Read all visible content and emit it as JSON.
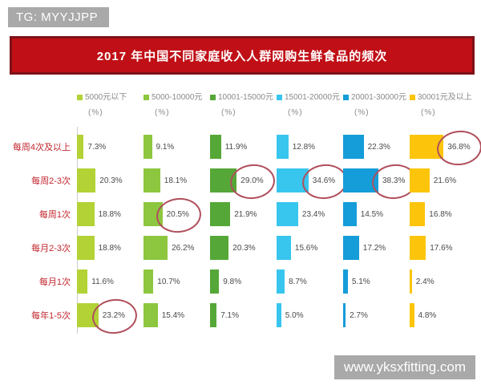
{
  "overlays": {
    "tg_label": "TG: MYYJJPP",
    "watermark": "www.yksxfitting.com"
  },
  "title": "2017 年中国不同家庭收入人群网购生鲜食品的频次",
  "chart_data": {
    "type": "bar",
    "orientation": "horizontal",
    "title": "2017 年中国不同家庭收入人群网购生鲜食品的频次",
    "value_unit": "(%)",
    "value_suffix": "%",
    "legend_position": "top",
    "axis_range": [
      0,
      40
    ],
    "grid": false,
    "categories": [
      "每周4次及以上",
      "每周2-3次",
      "每周1次",
      "每月2-3次",
      "每月1次",
      "每年1-5次"
    ],
    "series": [
      {
        "name": "5000元以下",
        "color": "#b2d235",
        "values": [
          7.3,
          20.3,
          18.8,
          18.8,
          11.6,
          23.2
        ]
      },
      {
        "name": "5000-10000元",
        "color": "#8dc63f",
        "values": [
          9.1,
          18.1,
          20.5,
          26.2,
          10.7,
          15.4
        ]
      },
      {
        "name": "10001-15000元",
        "color": "#55a838",
        "values": [
          11.9,
          29.0,
          21.9,
          20.3,
          9.8,
          7.1
        ]
      },
      {
        "name": "15001-20000元",
        "color": "#38c5ee",
        "values": [
          12.8,
          34.6,
          23.4,
          15.6,
          8.7,
          5.0
        ]
      },
      {
        "name": "20001-30000元",
        "color": "#149dd9",
        "values": [
          22.3,
          38.3,
          14.5,
          17.2,
          5.1,
          2.7
        ]
      },
      {
        "name": "30001元及以上",
        "color": "#fcc50c",
        "values": [
          36.8,
          21.6,
          16.8,
          17.6,
          2.4,
          4.8
        ]
      }
    ],
    "circled_cells": [
      {
        "category_index": 0,
        "series_index": 5
      },
      {
        "category_index": 1,
        "series_index": 2
      },
      {
        "category_index": 1,
        "series_index": 3
      },
      {
        "category_index": 1,
        "series_index": 4
      },
      {
        "category_index": 2,
        "series_index": 1
      },
      {
        "category_index": 5,
        "series_index": 0
      }
    ],
    "annotation_color": "#b04f5c"
  },
  "colors": {
    "title_bg": "#c00f16",
    "title_border": "#7e1218",
    "overlay_bg": "#a9a9a9",
    "row_label": "#c2262e",
    "value_label": "#4a4a4a",
    "legend_text": "#8a8a8a",
    "axis_line": "#cccccc"
  }
}
